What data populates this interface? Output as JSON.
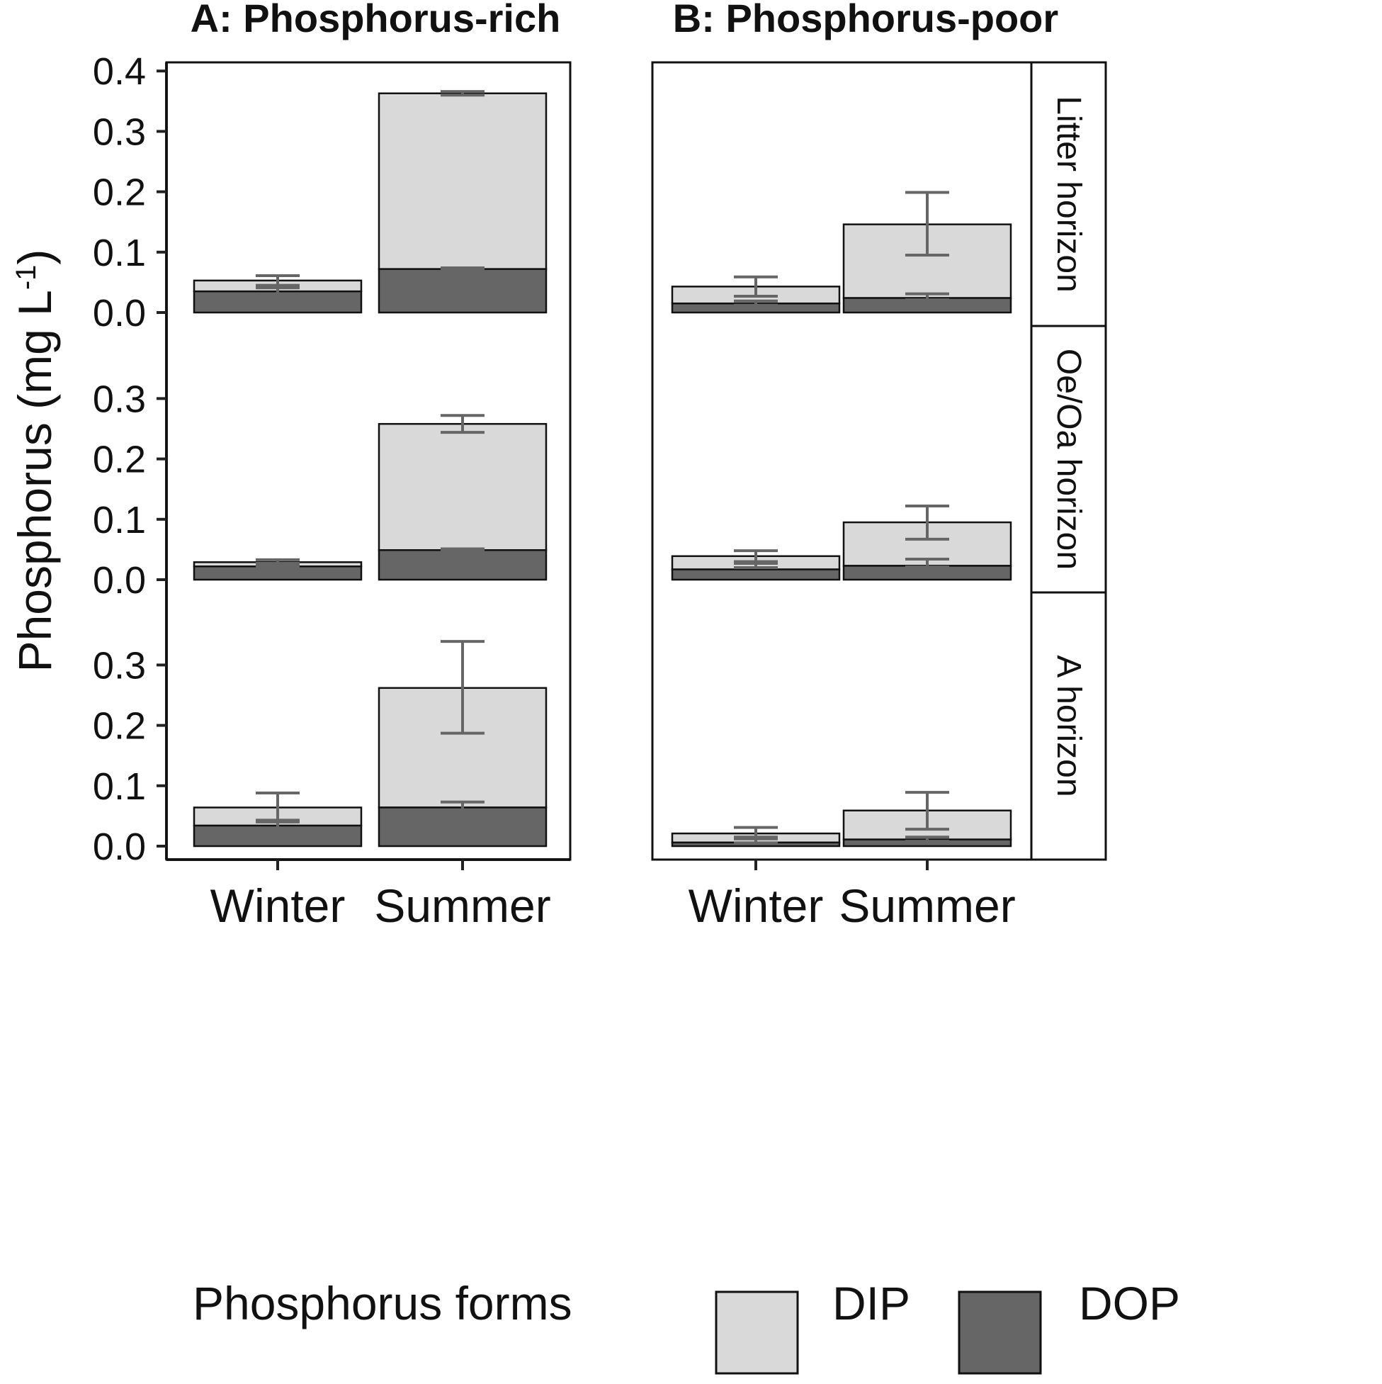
{
  "chart_data": {
    "type": "bar",
    "stacked": true,
    "ylabel": "Phosphorus (mg L",
    "ylabel_sup": "-1",
    "ylabel_close": ")",
    "categories": [
      "Winter",
      "Summer"
    ],
    "panels": [
      {
        "id": "A",
        "title": "A: Phosphorus-rich"
      },
      {
        "id": "B",
        "title": "B: Phosphorus-poor"
      }
    ],
    "rows": [
      {
        "id": "litter",
        "strip": "Litter horizon",
        "ylim": [
          0,
          0.4
        ],
        "ticks": [
          "0.0",
          "0.1",
          "0.2",
          "0.3",
          "0.4"
        ]
      },
      {
        "id": "oeoa",
        "strip": "Oe/Oa horizon",
        "ylim": [
          0,
          0.3
        ],
        "ticks": [
          "0.0",
          "0.1",
          "0.2",
          "0.3"
        ]
      },
      {
        "id": "a",
        "strip": "A horizon",
        "ylim": [
          0,
          0.3
        ],
        "ticks": [
          "0.0",
          "0.1",
          "0.2",
          "0.3"
        ]
      }
    ],
    "series": [
      {
        "name": "DIP",
        "color": "#d9d9d9"
      },
      {
        "name": "DOP",
        "color": "#666666"
      }
    ],
    "legend": {
      "title": "Phosphorus forms",
      "position": "bottom"
    },
    "data": {
      "A": {
        "litter": {
          "Winter": {
            "DOP": 0.035,
            "DOP_err": [
              0.03,
              0.041
            ],
            "total": 0.053,
            "total_err": [
              0.045,
              0.061
            ]
          },
          "Summer": {
            "DOP": 0.072,
            "DOP_err": [
              0.07,
              0.074
            ],
            "total": 0.363,
            "total_err": [
              0.36,
              0.366
            ]
          }
        },
        "oeoa": {
          "Winter": {
            "DOP": 0.022,
            "DOP_err": [
              0.02,
              0.024
            ],
            "total": 0.029,
            "total_err": [
              0.027,
              0.033
            ]
          },
          "Summer": {
            "DOP": 0.049,
            "DOP_err": [
              0.047,
              0.051
            ],
            "total": 0.258,
            "total_err": [
              0.244,
              0.272
            ]
          }
        },
        "a": {
          "Winter": {
            "DOP": 0.034,
            "DOP_err": [
              0.028,
              0.043
            ],
            "total": 0.064,
            "total_err": [
              0.04,
              0.088
            ]
          },
          "Summer": {
            "DOP": 0.064,
            "DOP_err": [
              0.058,
              0.073
            ],
            "total": 0.262,
            "total_err": [
              0.187,
              0.339
            ]
          }
        }
      },
      "B": {
        "litter": {
          "Winter": {
            "DOP": 0.015,
            "DOP_err": [
              0.012,
              0.019
            ],
            "total": 0.043,
            "total_err": [
              0.027,
              0.059
            ]
          },
          "Summer": {
            "DOP": 0.024,
            "DOP_err": [
              0.021,
              0.031
            ],
            "total": 0.146,
            "total_err": [
              0.095,
              0.199
            ]
          }
        },
        "oeoa": {
          "Winter": {
            "DOP": 0.017,
            "DOP_err": [
              0.02,
              0.027
            ],
            "total": 0.039,
            "total_err": [
              0.03,
              0.048
            ]
          },
          "Summer": {
            "DOP": 0.023,
            "DOP_err": [
              0.021,
              0.034
            ],
            "total": 0.095,
            "total_err": [
              0.067,
              0.122
            ]
          }
        },
        "a": {
          "Winter": {
            "DOP": 0.006,
            "DOP_err": [
              0.005,
              0.015
            ],
            "total": 0.021,
            "total_err": [
              0.012,
              0.031
            ]
          },
          "Summer": {
            "DOP": 0.011,
            "DOP_err": [
              0.008,
              0.015
            ],
            "total": 0.059,
            "total_err": [
              0.028,
              0.089
            ]
          }
        }
      }
    }
  }
}
